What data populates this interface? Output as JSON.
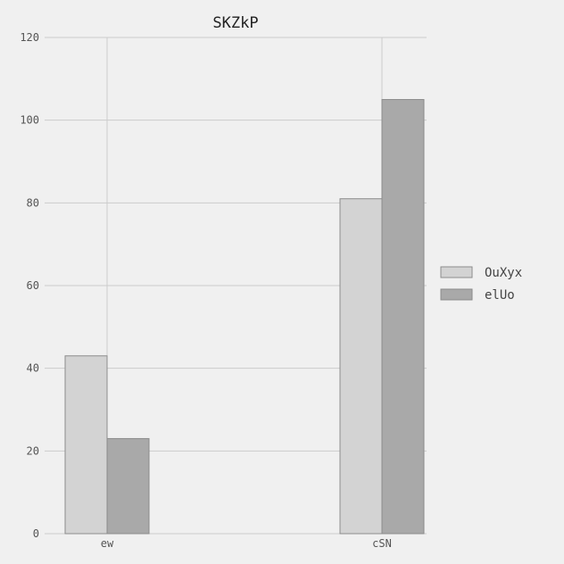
{
  "chart_data": {
    "type": "bar",
    "title": "SKZkP",
    "xlabel": "",
    "ylabel": "",
    "categories": [
      "ew",
      "cSN"
    ],
    "series": [
      {
        "name": "OuXyx",
        "values": [
          43,
          81
        ],
        "color": "#d3d3d3"
      },
      {
        "name": "elUo",
        "values": [
          23,
          105
        ],
        "color": "#a9a9a9"
      }
    ],
    "ylim": [
      0,
      120
    ],
    "yticks": [
      0,
      20,
      40,
      60,
      80,
      100,
      120
    ],
    "grid": true,
    "legend_position": "right"
  },
  "colors": {
    "background": "#f0f0f0",
    "grid": "#cccccc",
    "bar_edge": "#8c8c8c"
  }
}
